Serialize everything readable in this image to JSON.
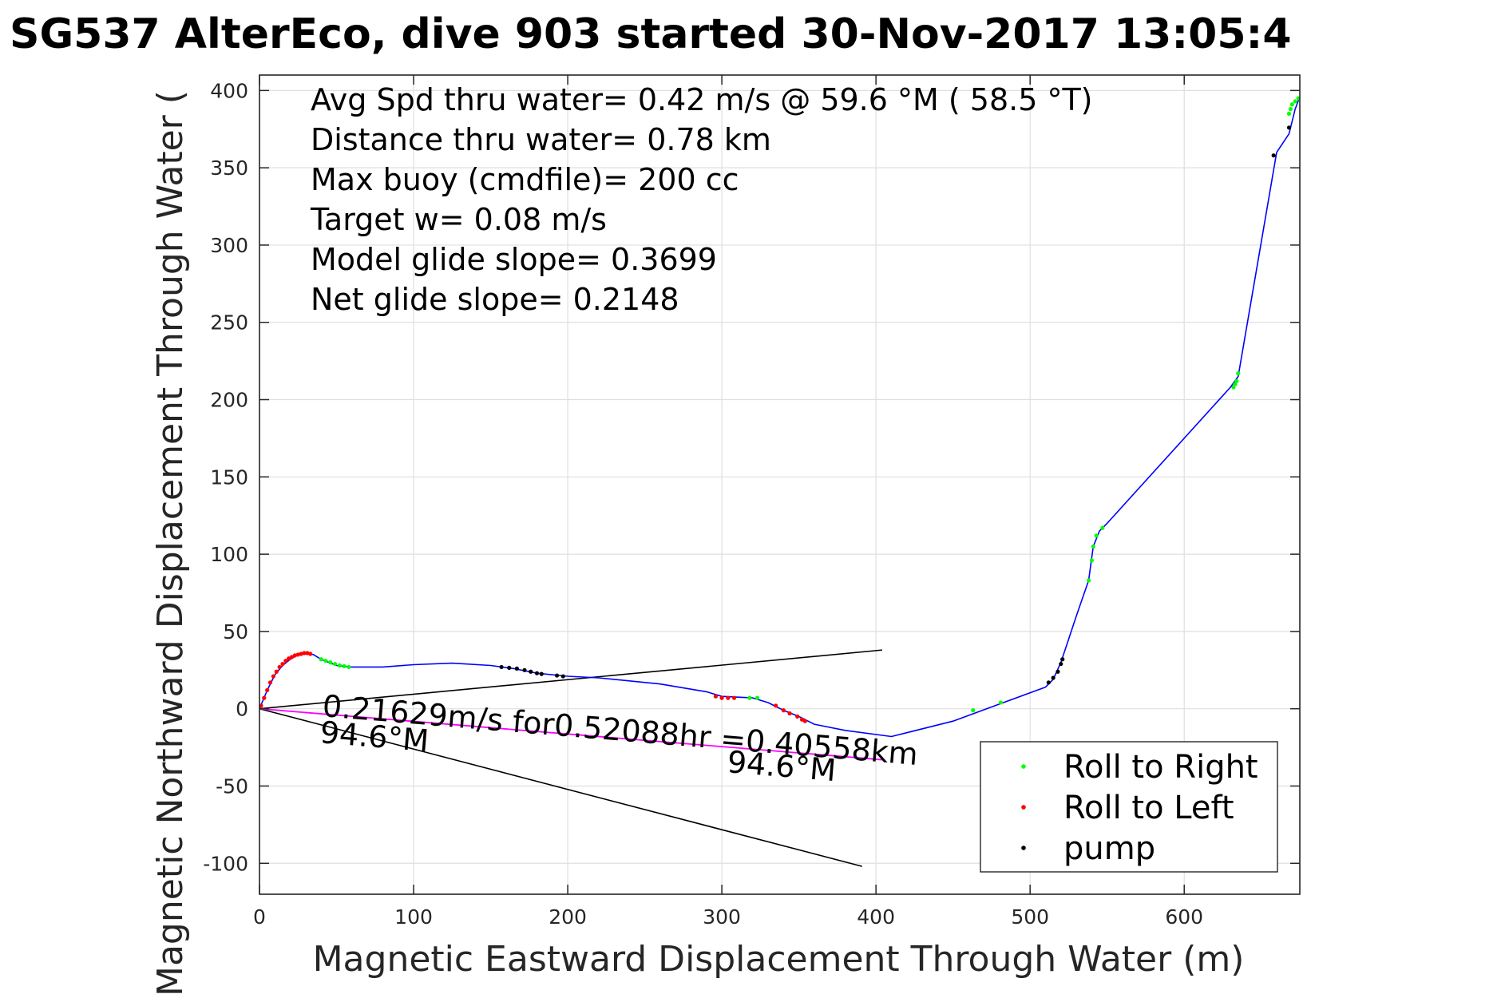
{
  "chart_data": {
    "type": "scatter",
    "title": "SG537 AlterEco, dive 903 started 30-Nov-2017 13:05:4",
    "xlabel": "Magnetic Eastward Displacement Through Water (m)",
    "ylabel": "Magnetic Northward Displacement Through Water (",
    "xlim": [
      0,
      675
    ],
    "ylim": [
      -120,
      410
    ],
    "xticks": [
      0,
      100,
      200,
      300,
      400,
      500,
      600
    ],
    "yticks": [
      -100,
      -50,
      0,
      50,
      100,
      150,
      200,
      250,
      300,
      350,
      400
    ],
    "grid": true,
    "colors": {
      "track": "#0000ff",
      "roll_right": "#00ff00",
      "roll_left": "#ff0000",
      "pump": "#000000",
      "current": "#ff00ff",
      "reference": "#000000"
    },
    "info_lines": [
      "Avg Spd thru water=  0.42 m/s @  59.6 °M ( 58.5 °T)",
      "Distance thru water=  0.78 km",
      "Max buoy (cmdfile)= 200 cc",
      "Target w= 0.08 m/s",
      "Model glide slope= 0.3699",
      "Net glide slope= 0.2148"
    ],
    "annotations": {
      "current_text": "0.21629m/s for0.52088hr =0.40558km",
      "heading_start": "94.6°M",
      "heading_end": "94.6°M"
    },
    "legend": {
      "placement": "bottom-right",
      "entries": [
        "Roll to Right",
        "Roll to Left",
        "pump"
      ]
    },
    "track": [
      [
        0,
        0
      ],
      [
        5,
        12
      ],
      [
        10,
        22
      ],
      [
        15,
        28
      ],
      [
        20,
        32
      ],
      [
        25,
        35
      ],
      [
        30,
        36
      ],
      [
        35,
        35
      ],
      [
        40,
        32
      ],
      [
        45,
        30
      ],
      [
        50,
        28
      ],
      [
        60,
        27
      ],
      [
        80,
        27
      ],
      [
        100,
        28.5
      ],
      [
        125,
        29.5
      ],
      [
        150,
        28
      ],
      [
        165,
        26
      ],
      [
        180,
        23
      ],
      [
        200,
        21
      ],
      [
        220,
        20
      ],
      [
        260,
        16
      ],
      [
        290,
        11
      ],
      [
        300,
        8
      ],
      [
        320,
        7
      ],
      [
        330,
        4
      ],
      [
        340,
        -1
      ],
      [
        350,
        -5
      ],
      [
        360,
        -10
      ],
      [
        380,
        -14
      ],
      [
        410,
        -18
      ],
      [
        450,
        -8
      ],
      [
        480,
        3
      ],
      [
        510,
        14
      ],
      [
        515,
        19
      ],
      [
        520,
        30
      ],
      [
        530,
        60
      ],
      [
        538,
        83
      ],
      [
        541,
        105
      ],
      [
        545,
        115
      ],
      [
        550,
        120
      ],
      [
        630,
        208
      ],
      [
        635,
        215
      ],
      [
        660,
        360
      ],
      [
        668,
        372
      ],
      [
        672,
        388
      ],
      [
        675,
        396
      ]
    ],
    "roll_right_points": [
      [
        40,
        32
      ],
      [
        43,
        31
      ],
      [
        46,
        30
      ],
      [
        49,
        29
      ],
      [
        52,
        28
      ],
      [
        55,
        27.5
      ],
      [
        58,
        27
      ],
      [
        318,
        7
      ],
      [
        323,
        7
      ],
      [
        463,
        -1
      ],
      [
        481,
        4
      ],
      [
        538,
        83
      ],
      [
        540,
        96
      ],
      [
        541,
        105
      ],
      [
        543,
        112
      ],
      [
        547,
        117
      ],
      [
        632,
        208
      ],
      [
        633,
        210
      ],
      [
        634,
        212
      ],
      [
        635,
        217
      ],
      [
        668,
        385
      ],
      [
        669,
        388
      ],
      [
        670,
        391
      ],
      [
        672,
        393
      ],
      [
        674,
        395
      ]
    ],
    "roll_left_points": [
      [
        1,
        2
      ],
      [
        3,
        7
      ],
      [
        5,
        12
      ],
      [
        7,
        17
      ],
      [
        9,
        21
      ],
      [
        11,
        24
      ],
      [
        13,
        27
      ],
      [
        15,
        29
      ],
      [
        17,
        31
      ],
      [
        19,
        32.5
      ],
      [
        21,
        33.5
      ],
      [
        23,
        34.5
      ],
      [
        25,
        35
      ],
      [
        27,
        35.5
      ],
      [
        29,
        36
      ],
      [
        31,
        36
      ],
      [
        33,
        35.5
      ],
      [
        296,
        8
      ],
      [
        300,
        7
      ],
      [
        304,
        7
      ],
      [
        308,
        7
      ],
      [
        335,
        2
      ],
      [
        340,
        -1
      ],
      [
        344,
        -3
      ],
      [
        349,
        -5
      ],
      [
        352,
        -7
      ],
      [
        354,
        -8
      ]
    ],
    "pump_points": [
      [
        157,
        27
      ],
      [
        162,
        26.5
      ],
      [
        167,
        26
      ],
      [
        172,
        25
      ],
      [
        176,
        24
      ],
      [
        180,
        23
      ],
      [
        183,
        22.5
      ],
      [
        193,
        21.5
      ],
      [
        197,
        21
      ],
      [
        512,
        17
      ],
      [
        515,
        20
      ],
      [
        518,
        24
      ],
      [
        520,
        29
      ],
      [
        521,
        32
      ],
      [
        658,
        358
      ],
      [
        668,
        376
      ]
    ],
    "current_line": [
      [
        0,
        0
      ],
      [
        404,
        -33
      ]
    ],
    "reference_lines": [
      [
        [
          0,
          0
        ],
        [
          404,
          38
        ]
      ],
      [
        [
          0,
          0
        ],
        [
          391,
          -102
        ]
      ]
    ]
  }
}
